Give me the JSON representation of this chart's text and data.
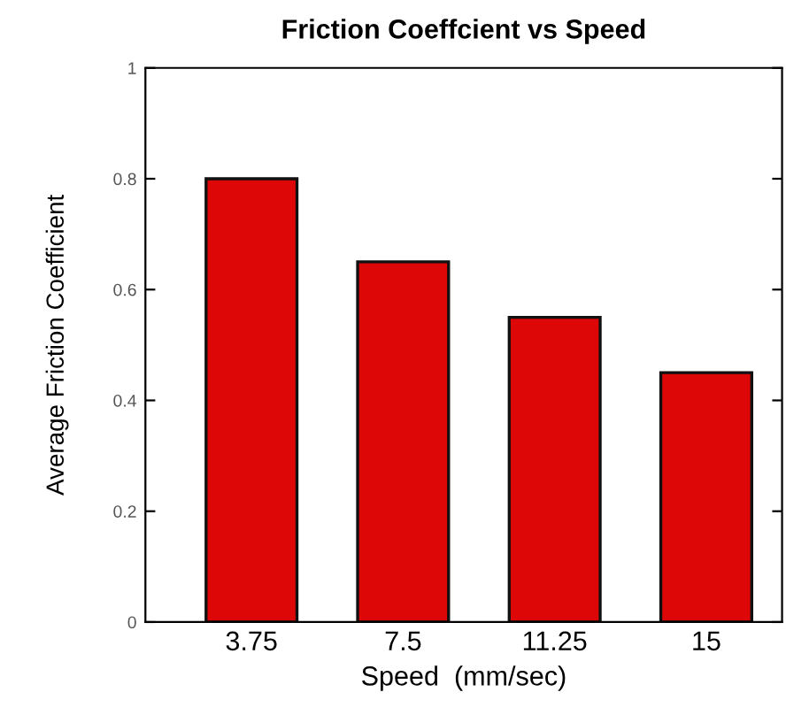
{
  "chart_data": {
    "type": "bar",
    "title": "Friction Coeffcient vs Speed",
    "xlabel": "Speed  (mm/sec)",
    "ylabel": "Average Friction Coefficient",
    "categories": [
      "3.75",
      "7.5",
      "11.25",
      "15"
    ],
    "values": [
      0.8,
      0.65,
      0.55,
      0.45
    ],
    "color": "#dd0707",
    "ylim": [
      0,
      1
    ],
    "yticks": [
      0,
      0.2,
      0.4,
      0.6,
      0.8,
      1
    ],
    "grid": false
  }
}
